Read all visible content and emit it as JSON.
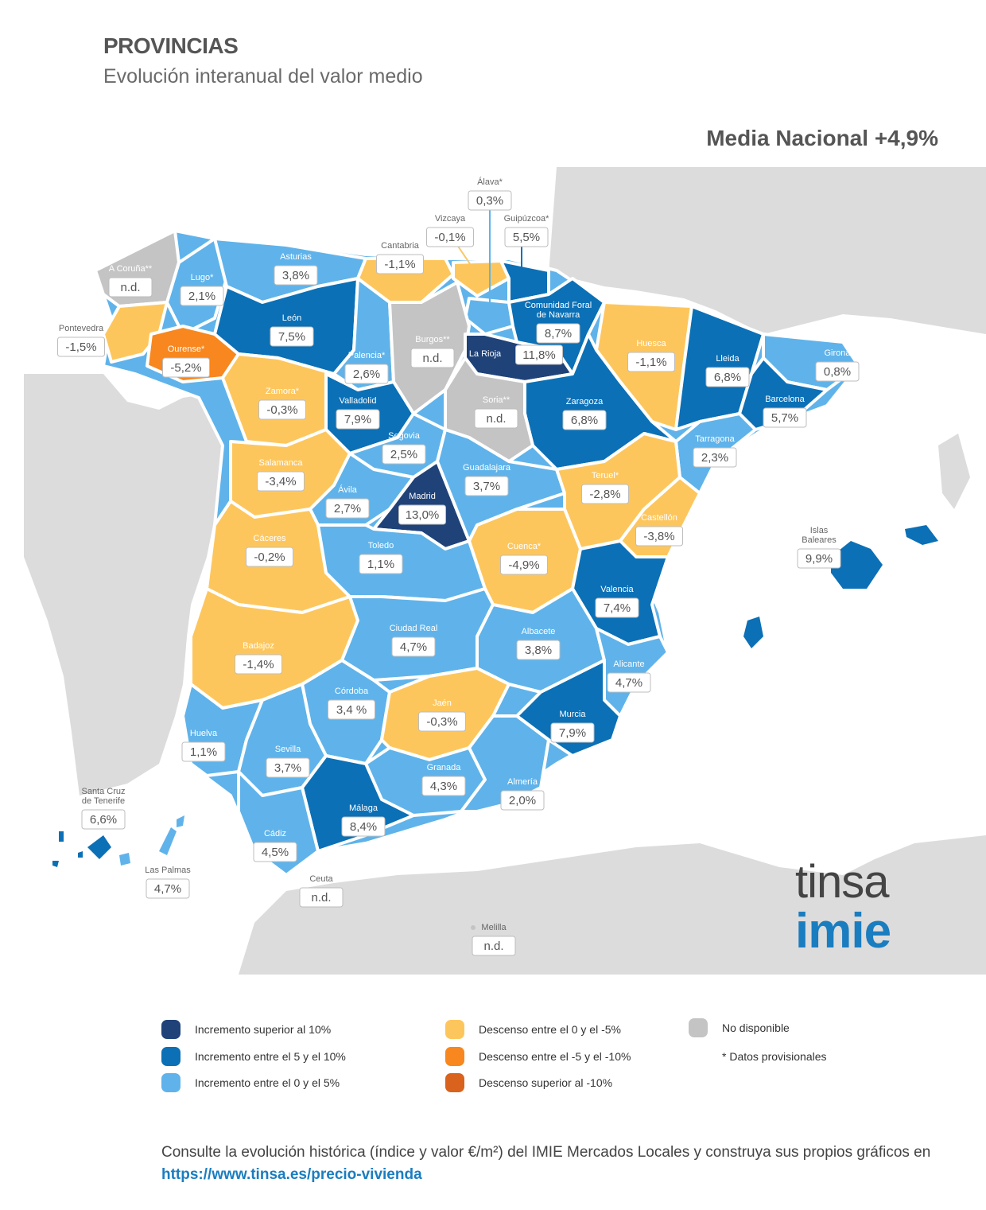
{
  "title": "PROVINCIAS",
  "subtitle": "Evolución interanual del valor medio",
  "national_average": "Media Nacional +4,9%",
  "colors": {
    "cat1": "#1f4279",
    "cat2": "#0b70b6",
    "cat3": "#5fb3ea",
    "cat4": "#fdc65d",
    "cat5": "#f7871e",
    "cat6": "#d9621c",
    "na": "#c4c4c4",
    "land": "#dcdcdc"
  },
  "provinces": [
    {
      "name": "Álava*",
      "value": "0,3%",
      "cat": "cat3"
    },
    {
      "name": "Vizcaya",
      "value": "-0,1%",
      "cat": "cat4"
    },
    {
      "name": "Guipúzcoa*",
      "value": "5,5%",
      "cat": "cat2"
    },
    {
      "name": "Cantabria",
      "value": "-1,1%",
      "cat": "cat4"
    },
    {
      "name": "Asturias",
      "value": "3,8%",
      "cat": "cat3"
    },
    {
      "name": "A Coruña**",
      "value": "n.d.",
      "cat": "na"
    },
    {
      "name": "Lugo*",
      "value": "2,1%",
      "cat": "cat3"
    },
    {
      "name": "Pontevedra",
      "value": "-1,5%",
      "cat": "cat4"
    },
    {
      "name": "Ourense*",
      "value": "-5,2%",
      "cat": "cat5"
    },
    {
      "name": "León",
      "value": "7,5%",
      "cat": "cat2"
    },
    {
      "name": "Palencia*",
      "value": "2,6%",
      "cat": "cat3"
    },
    {
      "name": "Burgos**",
      "value": "n.d.",
      "cat": "na"
    },
    {
      "name": "La Rioja",
      "value": "11,8%",
      "cat": "cat1"
    },
    {
      "name": "Comunidad Foral de Navarra",
      "value": "8,7%",
      "cat": "cat2"
    },
    {
      "name": "Huesca",
      "value": "-1,1%",
      "cat": "cat4"
    },
    {
      "name": "Lleida",
      "value": "6,8%",
      "cat": "cat2"
    },
    {
      "name": "Girona",
      "value": "0,8%",
      "cat": "cat3"
    },
    {
      "name": "Barcelona",
      "value": "5,7%",
      "cat": "cat2"
    },
    {
      "name": "Tarragona",
      "value": "2,3%",
      "cat": "cat3"
    },
    {
      "name": "Zaragoza",
      "value": "6,8%",
      "cat": "cat2"
    },
    {
      "name": "Soria**",
      "value": "n.d.",
      "cat": "na"
    },
    {
      "name": "Zamora*",
      "value": "-0,3%",
      "cat": "cat4"
    },
    {
      "name": "Valladolid",
      "value": "7,9%",
      "cat": "cat2"
    },
    {
      "name": "Segovia",
      "value": "2,5%",
      "cat": "cat3"
    },
    {
      "name": "Salamanca",
      "value": "-3,4%",
      "cat": "cat4"
    },
    {
      "name": "Ávila",
      "value": "2,7%",
      "cat": "cat3"
    },
    {
      "name": "Madrid",
      "value": "13,0%",
      "cat": "cat1"
    },
    {
      "name": "Guadalajara",
      "value": "3,7%",
      "cat": "cat3"
    },
    {
      "name": "Teruel*",
      "value": "-2,8%",
      "cat": "cat4"
    },
    {
      "name": "Castellón",
      "value": "-3,8%",
      "cat": "cat4"
    },
    {
      "name": "Islas Baleares",
      "value": "9,9%",
      "cat": "cat2"
    },
    {
      "name": "Cáceres",
      "value": "-0,2%",
      "cat": "cat4"
    },
    {
      "name": "Toledo",
      "value": "1,1%",
      "cat": "cat3"
    },
    {
      "name": "Cuenca*",
      "value": "-4,9%",
      "cat": "cat4"
    },
    {
      "name": "Valencia",
      "value": "7,4%",
      "cat": "cat2"
    },
    {
      "name": "Badajoz",
      "value": "-1,4%",
      "cat": "cat4"
    },
    {
      "name": "Ciudad Real",
      "value": "4,7%",
      "cat": "cat3"
    },
    {
      "name": "Albacete",
      "value": "3,8%",
      "cat": "cat3"
    },
    {
      "name": "Alicante",
      "value": "4,7%",
      "cat": "cat3"
    },
    {
      "name": "Córdoba",
      "value": "3,4 %",
      "cat": "cat3"
    },
    {
      "name": "Jaén",
      "value": "-0,3%",
      "cat": "cat4"
    },
    {
      "name": "Murcia",
      "value": "7,9%",
      "cat": "cat2"
    },
    {
      "name": "Huelva",
      "value": "1,1%",
      "cat": "cat3"
    },
    {
      "name": "Sevilla",
      "value": "3,7%",
      "cat": "cat3"
    },
    {
      "name": "Granada",
      "value": "4,3%",
      "cat": "cat3"
    },
    {
      "name": "Almería",
      "value": "2,0%",
      "cat": "cat3"
    },
    {
      "name": "Málaga",
      "value": "8,4%",
      "cat": "cat2"
    },
    {
      "name": "Cádiz",
      "value": "4,5%",
      "cat": "cat3"
    },
    {
      "name": "Santa Cruz de Tenerife",
      "value": "6,6%",
      "cat": "cat2"
    },
    {
      "name": "Las Palmas",
      "value": "4,7%",
      "cat": "cat3"
    },
    {
      "name": "Ceuta",
      "value": "n.d.",
      "cat": "na"
    },
    {
      "name": "Melilla",
      "value": "n.d.",
      "cat": "na"
    }
  ],
  "logo": {
    "line1": "tinsa",
    "line2": "imie"
  },
  "legend": [
    {
      "label": "Incremento superior al 10%",
      "color": "#1f4279"
    },
    {
      "label": "Incremento entre el 5 y el 10%",
      "color": "#0b70b6"
    },
    {
      "label": "Incremento entre el 0 y el 5%",
      "color": "#5fb3ea"
    },
    {
      "label": "Descenso entre el 0 y el -5%",
      "color": "#fdc65d"
    },
    {
      "label": "Descenso entre el -5 y el -10%",
      "color": "#f7871e"
    },
    {
      "label": "Descenso superior al -10%",
      "color": "#d9621c"
    },
    {
      "label": "No disponible",
      "color": "#c4c4c4"
    }
  ],
  "legend_note": "* Datos provisionales",
  "footer": {
    "text": "Consulte la evolución histórica (índice y valor €/m²) del IMIE Mercados Locales y construya sus propios gráficos en",
    "link": "https://www.tinsa.es/precio-vivienda"
  }
}
